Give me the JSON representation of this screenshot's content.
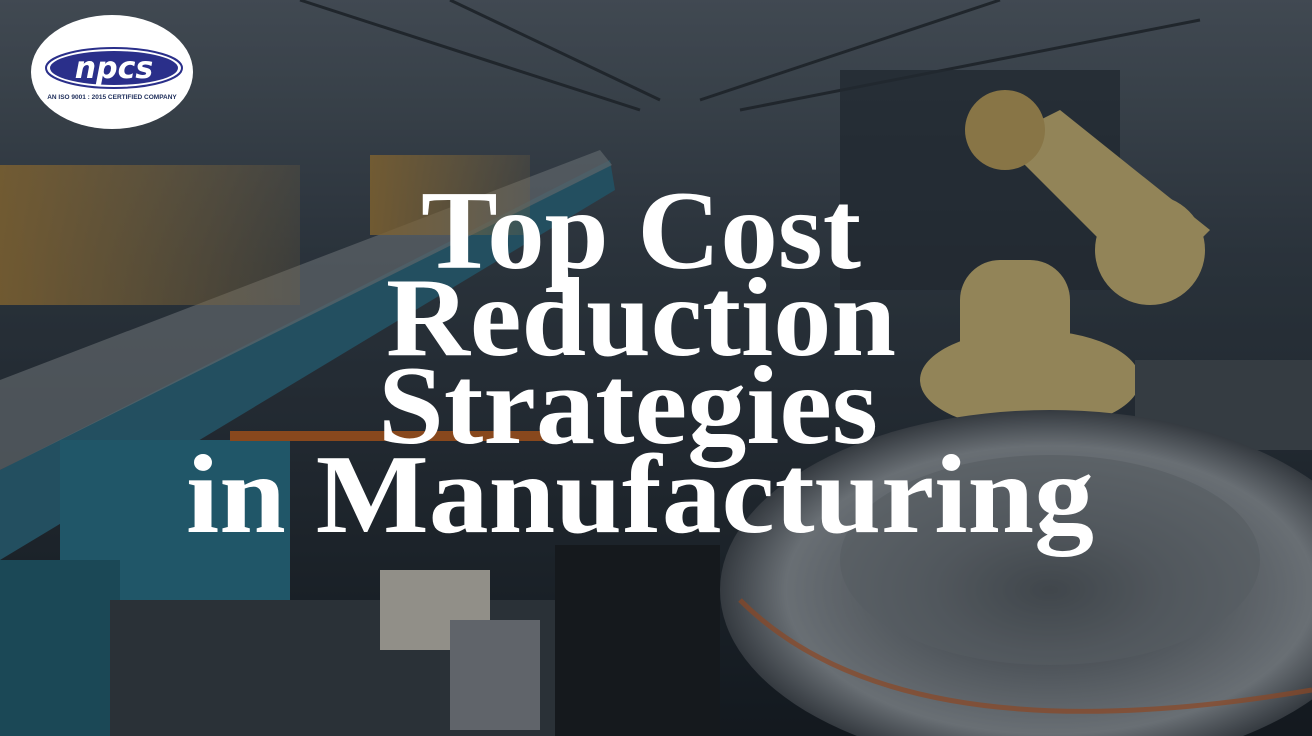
{
  "logo": {
    "brand": "npcs",
    "tagline": "AN ISO 9001 : 2015 CERTIFIED COMPANY"
  },
  "title": {
    "lines": [
      "Top Cost",
      "Reduction",
      "Strategies",
      "in Manufacturing"
    ]
  }
}
